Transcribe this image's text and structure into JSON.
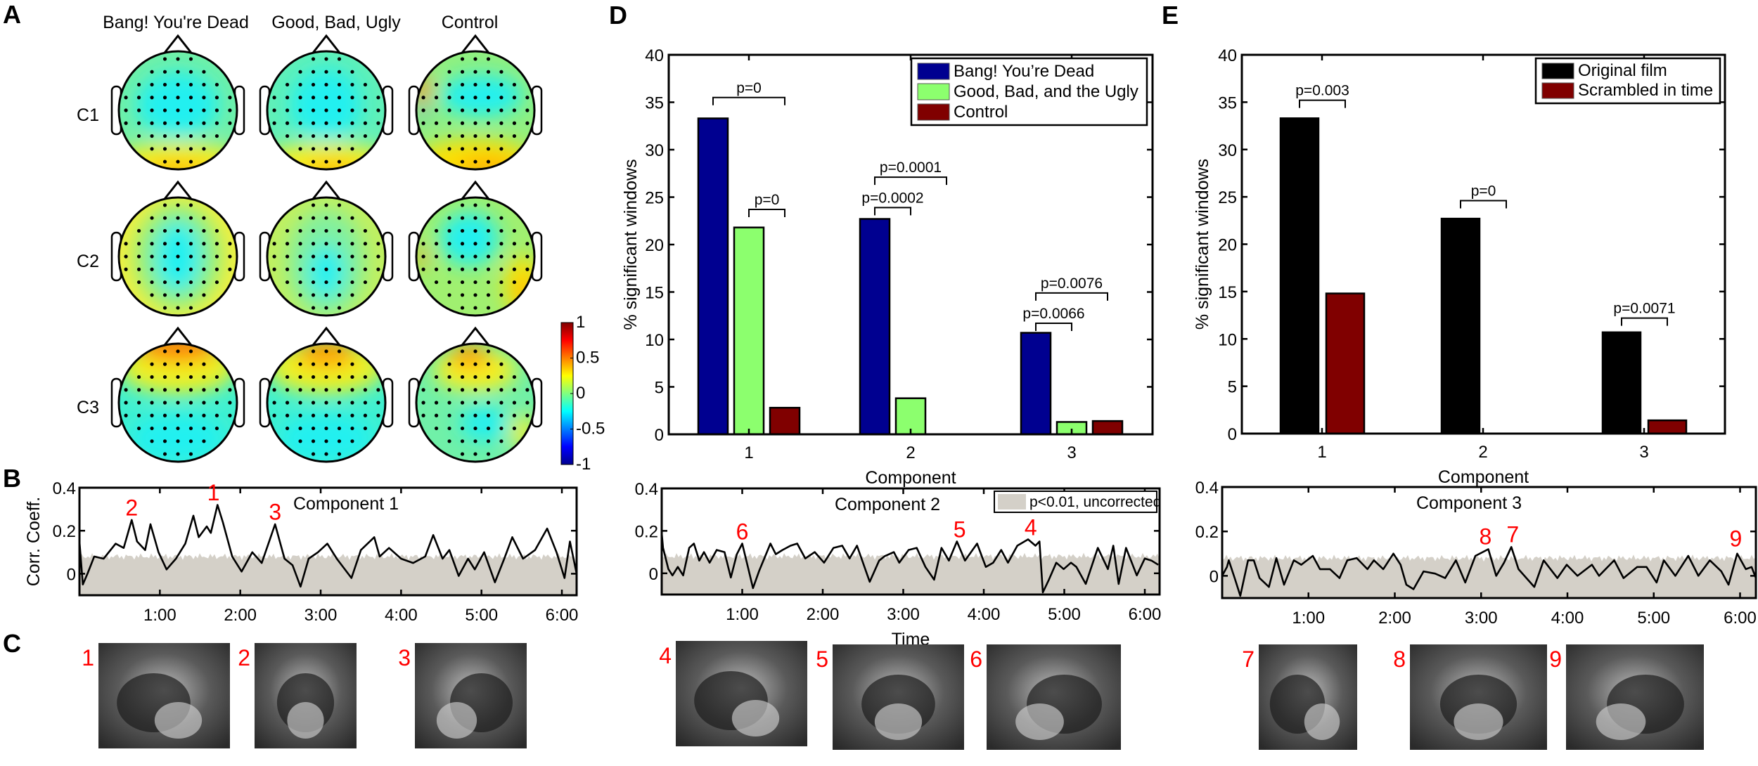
{
  "panel_labels": {
    "A": "A",
    "B": "B",
    "C": "C",
    "D": "D",
    "E": "E"
  },
  "topomaps": {
    "columns": [
      "Bang! You're Dead",
      "Good, Bad, Ugly",
      "Control"
    ],
    "rows": [
      "C1",
      "C2",
      "C3"
    ],
    "colorbar": {
      "range": [
        -1,
        1
      ],
      "ticks": [
        1,
        0.5,
        0,
        -0.5,
        -1
      ],
      "tick_labels": [
        "1",
        "0.5",
        "0",
        "-0.5",
        "-1"
      ]
    }
  },
  "chart_data": [
    {
      "id": "D",
      "type": "bar",
      "categories": [
        "1",
        "2",
        "3"
      ],
      "xlabel": "Component",
      "ylabel": "% significant windows",
      "ylim": [
        0,
        40
      ],
      "yticks": [
        0,
        5,
        10,
        15,
        20,
        25,
        30,
        35,
        40
      ],
      "ytick_labels": [
        "0",
        "5",
        "10",
        "15",
        "20",
        "25",
        "30",
        "35",
        "40"
      ],
      "legend": "top-right",
      "series": [
        {
          "name": "Bang! You’re Dead",
          "color": "#000090",
          "values": [
            33.3,
            22.7,
            10.7
          ]
        },
        {
          "name": "Good, Bad, and the Ugly",
          "color": "#8cff6e",
          "values": [
            21.8,
            3.8,
            1.3
          ]
        },
        {
          "name": "Control",
          "color": "#800000",
          "values": [
            2.8,
            0,
            1.4
          ]
        }
      ],
      "annotations": [
        {
          "text": "p=0",
          "group": 0,
          "from": 0,
          "to": 2,
          "y": 35.5
        },
        {
          "text": "p=0",
          "group": 0,
          "from": 1,
          "to": 2,
          "y": 23.7
        },
        {
          "text": "p=0.0001",
          "group": 1,
          "from": 0,
          "to": 2,
          "y": 27.1
        },
        {
          "text": "p=0.0002",
          "group": 1,
          "from": 0,
          "to": 1,
          "y": 23.9
        },
        {
          "text": "p=0.0076",
          "group": 2,
          "from": 0,
          "to": 2,
          "y": 14.9
        },
        {
          "text": "p=0.0066",
          "group": 2,
          "from": 0,
          "to": 1,
          "y": 11.7
        }
      ]
    },
    {
      "id": "E",
      "type": "bar",
      "categories": [
        "1",
        "2",
        "3"
      ],
      "xlabel": "Component",
      "ylabel": "% significant windows",
      "ylim": [
        0,
        40
      ],
      "yticks": [
        0,
        5,
        10,
        15,
        20,
        25,
        30,
        35,
        40
      ],
      "ytick_labels": [
        "0",
        "5",
        "10",
        "15",
        "20",
        "25",
        "30",
        "35",
        "40"
      ],
      "legend": "top-right",
      "series": [
        {
          "name": "Original film",
          "color": "#000000",
          "values": [
            33.3,
            22.7,
            10.7
          ]
        },
        {
          "name": "Scrambled in time",
          "color": "#800000",
          "values": [
            14.8,
            0,
            1.4
          ]
        }
      ],
      "annotations": [
        {
          "text": "p=0.003",
          "group": 0,
          "from": 0,
          "to": 1,
          "y": 35.2
        },
        {
          "text": "p=0",
          "group": 1,
          "from": 0,
          "to": 1,
          "y": 24.6
        },
        {
          "text": "p=0.0071",
          "group": 2,
          "from": 0,
          "to": 1,
          "y": 12.2
        }
      ]
    },
    {
      "id": "B",
      "type": "line",
      "title": "Component 1",
      "xlabel": "",
      "ylabel": "Corr. Coeff.",
      "xlim": [
        0,
        371
      ],
      "ylim": [
        -0.1,
        0.4
      ],
      "xticks": [
        60,
        120,
        180,
        240,
        300,
        360
      ],
      "xtick_labels": [
        "1:00",
        "2:00",
        "3:00",
        "4:00",
        "5:00",
        "6:00"
      ],
      "yticks": [
        0,
        0.2,
        0.4
      ],
      "ytick_labels": [
        "0",
        "0.2",
        "0.4"
      ],
      "threshold": 0.08,
      "points": [
        [
          0,
          0.15
        ],
        [
          2.5,
          -0.05
        ],
        [
          6,
          0.0
        ],
        [
          11,
          0.08
        ],
        [
          18,
          0.07
        ],
        [
          27,
          0.14
        ],
        [
          33,
          0.12
        ],
        [
          39,
          0.25
        ],
        [
          43,
          0.15
        ],
        [
          49,
          0.11
        ],
        [
          53,
          0.23
        ],
        [
          59,
          0.1
        ],
        [
          65,
          0.02
        ],
        [
          72,
          0.07
        ],
        [
          79,
          0.14
        ],
        [
          85,
          0.27
        ],
        [
          89,
          0.17
        ],
        [
          95,
          0.22
        ],
        [
          98,
          0.19
        ],
        [
          103,
          0.32
        ],
        [
          107,
          0.24
        ],
        [
          114,
          0.08
        ],
        [
          121,
          0.01
        ],
        [
          129,
          0.1
        ],
        [
          136,
          0.05
        ],
        [
          146,
          0.23
        ],
        [
          153,
          0.07
        ],
        [
          159,
          0.04
        ],
        [
          165,
          -0.06
        ],
        [
          171,
          0.07
        ],
        [
          178,
          0.1
        ],
        [
          185,
          0.14
        ],
        [
          192,
          0.07
        ],
        [
          203,
          -0.02
        ],
        [
          210,
          0.11
        ],
        [
          220,
          0.17
        ],
        [
          224,
          0.08
        ],
        [
          231,
          0.12
        ],
        [
          240,
          0.07
        ],
        [
          249,
          0.05
        ],
        [
          258,
          0.08
        ],
        [
          264,
          0.18
        ],
        [
          271,
          0.07
        ],
        [
          276,
          0.11
        ],
        [
          283,
          -0.01
        ],
        [
          290,
          0.07
        ],
        [
          295,
          0.02
        ],
        [
          302,
          0.1
        ],
        [
          310,
          -0.04
        ],
        [
          317,
          0.07
        ],
        [
          323,
          0.17
        ],
        [
          331,
          0.07
        ],
        [
          340,
          0.11
        ],
        [
          349,
          0.21
        ],
        [
          356,
          0.1
        ],
        [
          362,
          -0.02
        ],
        [
          366,
          0.15
        ],
        [
          371,
          0.0
        ]
      ],
      "peaks": [
        {
          "label": "2",
          "t": 39,
          "v": 0.25
        },
        {
          "label": "1",
          "t": 100,
          "v": 0.32
        },
        {
          "label": "3",
          "t": 146,
          "v": 0.23
        }
      ]
    },
    {
      "id": "C2",
      "type": "line",
      "title": "Component 2",
      "xlabel": "Time",
      "ylabel": "",
      "xlim": [
        0,
        371
      ],
      "ylim": [
        -0.1,
        0.4
      ],
      "xticks": [
        60,
        120,
        180,
        240,
        300,
        360
      ],
      "xtick_labels": [
        "1:00",
        "2:00",
        "3:00",
        "4:00",
        "5:00",
        "6:00"
      ],
      "yticks": [
        0,
        0.2,
        0.4
      ],
      "ytick_labels": [
        "0",
        "0.2",
        "0.4"
      ],
      "threshold": 0.08,
      "legend": {
        "label": "p<0.01, uncorrected",
        "color": "#d4d0c8",
        "placement": "top-right"
      },
      "points": [
        [
          0,
          0.19
        ],
        [
          1,
          0.12
        ],
        [
          5,
          0.02
        ],
        [
          8,
          -0.01
        ],
        [
          12,
          0.03
        ],
        [
          16,
          -0.01
        ],
        [
          20.5,
          0.12
        ],
        [
          24,
          0.14
        ],
        [
          28,
          0.06
        ],
        [
          31.5,
          0.1
        ],
        [
          35.7,
          0.05
        ],
        [
          41,
          0.11
        ],
        [
          46.8,
          0.1
        ],
        [
          51.5,
          -0.02
        ],
        [
          56,
          0.09
        ],
        [
          60,
          0.14
        ],
        [
          64.6,
          0.02
        ],
        [
          68,
          -0.07
        ],
        [
          72.5,
          0.01
        ],
        [
          81,
          0.14
        ],
        [
          85,
          0.09
        ],
        [
          90,
          0.11
        ],
        [
          96,
          0.13
        ],
        [
          101,
          0.14
        ],
        [
          107,
          0.07
        ],
        [
          114,
          0.1
        ],
        [
          121,
          0.05
        ],
        [
          128,
          0.12
        ],
        [
          134.5,
          0.13
        ],
        [
          140,
          0.07
        ],
        [
          145.5,
          0.13
        ],
        [
          155,
          -0.04
        ],
        [
          162,
          0.06
        ],
        [
          166,
          0.08
        ],
        [
          173,
          0.1
        ],
        [
          177,
          0.05
        ],
        [
          184,
          0.11
        ],
        [
          190,
          0.12
        ],
        [
          196.5,
          0.03
        ],
        [
          203,
          -0.03
        ],
        [
          208.5,
          0.12
        ],
        [
          214,
          0.06
        ],
        [
          220,
          0.15
        ],
        [
          226,
          0.06
        ],
        [
          235,
          0.14
        ],
        [
          241.5,
          0.03
        ],
        [
          247,
          0.05
        ],
        [
          253,
          0.11
        ],
        [
          258,
          0.05
        ],
        [
          265,
          0.13
        ],
        [
          273,
          0.16
        ],
        [
          278.5,
          0.13
        ],
        [
          281.5,
          0.15
        ],
        [
          284,
          -0.09
        ],
        [
          288.5,
          -0.03
        ],
        [
          294,
          0.05
        ],
        [
          299.5,
          0.02
        ],
        [
          305,
          0.05
        ],
        [
          309,
          0.03
        ],
        [
          316,
          -0.05
        ],
        [
          325,
          0.12
        ],
        [
          332.5,
          0.02
        ],
        [
          336.5,
          0.13
        ],
        [
          340.5,
          -0.05
        ],
        [
          346,
          0.12
        ],
        [
          354,
          -0.01
        ],
        [
          360,
          0.07
        ],
        [
          365,
          0.06
        ],
        [
          370,
          0.04
        ]
      ],
      "peaks": [
        {
          "label": "6",
          "t": 60,
          "v": 0.14
        },
        {
          "label": "5",
          "t": 222,
          "v": 0.15
        },
        {
          "label": "4",
          "t": 275,
          "v": 0.16
        }
      ]
    },
    {
      "id": "C3",
      "type": "line",
      "title": "Component 3",
      "xlabel": "",
      "ylabel": "",
      "xlim": [
        0,
        371
      ],
      "ylim": [
        -0.1,
        0.4
      ],
      "xticks": [
        60,
        120,
        180,
        240,
        300,
        360
      ],
      "xtick_labels": [
        "1:00",
        "2:00",
        "3:00",
        "4:00",
        "5:00",
        "6:00"
      ],
      "yticks": [
        0,
        0.2,
        0.4
      ],
      "ytick_labels": [
        "0",
        "0.2",
        "0.4"
      ],
      "threshold": 0.08,
      "points": [
        [
          0,
          0.0
        ],
        [
          3.3,
          0.04
        ],
        [
          4.6,
          0.07
        ],
        [
          8.7,
          -0.01
        ],
        [
          12.6,
          -0.09
        ],
        [
          18,
          0.07
        ],
        [
          22,
          0.07
        ],
        [
          26,
          -0.01
        ],
        [
          32.5,
          -0.05
        ],
        [
          37.7,
          0.08
        ],
        [
          43,
          -0.04
        ],
        [
          49.8,
          0.07
        ],
        [
          55,
          0.05
        ],
        [
          63,
          0.09
        ],
        [
          68,
          0.03
        ],
        [
          75,
          0.03
        ],
        [
          81.6,
          -0.01
        ],
        [
          87,
          0.07
        ],
        [
          93.5,
          0.08
        ],
        [
          101,
          0.03
        ],
        [
          105.5,
          0.07
        ],
        [
          112,
          0.03
        ],
        [
          119,
          0.1
        ],
        [
          124,
          0.05
        ],
        [
          128,
          -0.04
        ],
        [
          133,
          -0.06
        ],
        [
          140,
          0.02
        ],
        [
          148,
          0.01
        ],
        [
          155,
          -0.01
        ],
        [
          162.5,
          0.07
        ],
        [
          169,
          -0.03
        ],
        [
          176,
          0.09
        ],
        [
          185,
          0.12
        ],
        [
          190.5,
          0.0
        ],
        [
          196,
          0.06
        ],
        [
          201,
          0.13
        ],
        [
          206,
          0.03
        ],
        [
          217,
          -0.05
        ],
        [
          223.5,
          0.07
        ],
        [
          233,
          -0.01
        ],
        [
          239.5,
          0.05
        ],
        [
          247,
          0.0
        ],
        [
          257,
          0.05
        ],
        [
          262,
          0.0
        ],
        [
          272.5,
          0.07
        ],
        [
          279,
          -0.01
        ],
        [
          288.5,
          0.04
        ],
        [
          295,
          0.04
        ],
        [
          302,
          -0.03
        ],
        [
          307,
          0.07
        ],
        [
          315,
          0.0
        ],
        [
          324,
          0.09
        ],
        [
          331,
          0.0
        ],
        [
          339,
          0.07
        ],
        [
          347,
          0.02
        ],
        [
          352,
          -0.04
        ],
        [
          358,
          0.1
        ],
        [
          364,
          0.03
        ],
        [
          368,
          0.04
        ],
        [
          371,
          -0.01
        ]
      ],
      "peaks": [
        {
          "label": "8",
          "t": 183,
          "v": 0.12
        },
        {
          "label": "7",
          "t": 202,
          "v": 0.13
        },
        {
          "label": "9",
          "t": 357,
          "v": 0.11
        }
      ]
    }
  ],
  "frames": [
    {
      "label": "1"
    },
    {
      "label": "2"
    },
    {
      "label": "3"
    },
    {
      "label": "4"
    },
    {
      "label": "5"
    },
    {
      "label": "6"
    },
    {
      "label": "7"
    },
    {
      "label": "8"
    },
    {
      "label": "9"
    }
  ]
}
